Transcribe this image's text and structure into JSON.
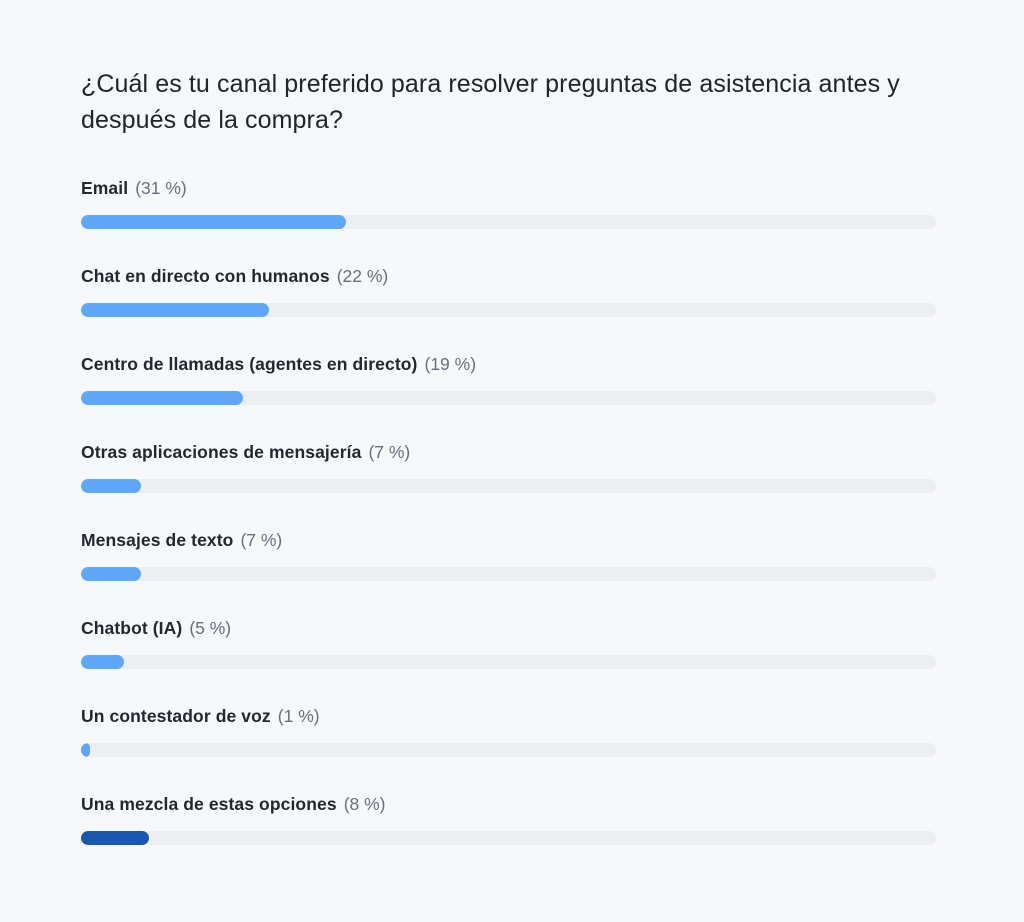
{
  "title": "¿Cuál es tu canal preferido para resolver preguntas de asistencia antes y después de la compra?",
  "colors": {
    "background": "#f7f8fa",
    "track": "#eceef1",
    "bar": "#5fa7f8",
    "bar_highlight": "#1a57b0",
    "label_text": "#23272f",
    "percent_text": "#68707c"
  },
  "chart_data": {
    "type": "bar",
    "orientation": "horizontal",
    "title": "¿Cuál es tu canal preferido para resolver preguntas de asistencia antes y después de la compra?",
    "xlabel": "",
    "ylabel": "",
    "unit": "%",
    "xlim": [
      0,
      100
    ],
    "grid": false,
    "legend": false,
    "categories": [
      "Email",
      "Chat en directo con humanos",
      "Centro de llamadas (agentes en directo)",
      "Otras aplicaciones de mensajería",
      "Mensajes de texto",
      "Chatbot (IA)",
      "Un contestador de voz",
      "Una mezcla de estas opciones"
    ],
    "values": [
      31,
      22,
      19,
      7,
      7,
      5,
      1,
      8
    ],
    "value_labels": [
      "(31 %)",
      "(22 %)",
      "(19 %)",
      "(7 %)",
      "(7 %)",
      "(5 %)",
      "(1 %)",
      "(8 %)"
    ],
    "highlighted_index": 7
  }
}
